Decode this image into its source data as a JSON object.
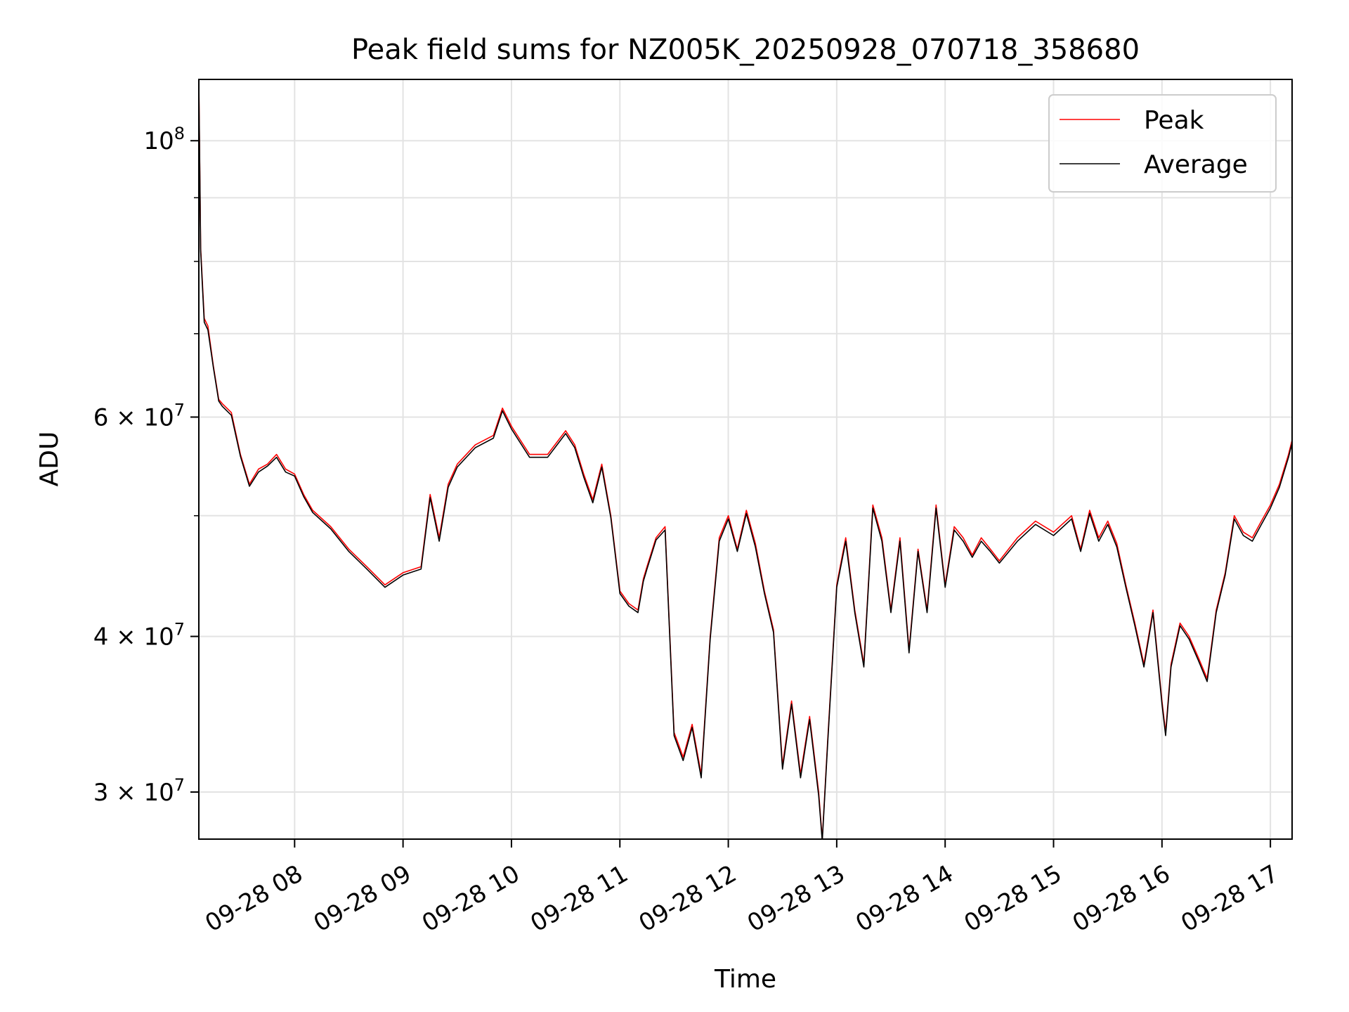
{
  "chart_data": {
    "type": "line",
    "title": "Peak field sums for NZ005K_20250928_070718_358680",
    "xlabel": "Time",
    "ylabel": "ADU",
    "yscale": "log",
    "ylim": [
      27500000,
      112000000
    ],
    "xlim": [
      "2025-09-28 07:07",
      "2025-09-28 17:12"
    ],
    "grid": true,
    "legend_position": "top-right",
    "x_ticks": [
      {
        "value": "2025-09-28 08:00",
        "label": "09-28 08"
      },
      {
        "value": "2025-09-28 09:00",
        "label": "09-28 09"
      },
      {
        "value": "2025-09-28 10:00",
        "label": "09-28 10"
      },
      {
        "value": "2025-09-28 11:00",
        "label": "09-28 11"
      },
      {
        "value": "2025-09-28 12:00",
        "label": "09-28 12"
      },
      {
        "value": "2025-09-28 13:00",
        "label": "09-28 13"
      },
      {
        "value": "2025-09-28 14:00",
        "label": "09-28 14"
      },
      {
        "value": "2025-09-28 15:00",
        "label": "09-28 15"
      },
      {
        "value": "2025-09-28 16:00",
        "label": "09-28 16"
      },
      {
        "value": "2025-09-28 17:00",
        "label": "09-28 17"
      }
    ],
    "y_major_ticks": [
      {
        "value": 100000000,
        "label": "10",
        "exp": "8",
        "mantissa": ""
      },
      {
        "value": 60000000,
        "label": "10",
        "exp": "7",
        "mantissa": "6 × "
      },
      {
        "value": 40000000,
        "label": "10",
        "exp": "7",
        "mantissa": "4 × "
      },
      {
        "value": 30000000,
        "label": "10",
        "exp": "7",
        "mantissa": "3 × "
      }
    ],
    "y_grid_values": [
      30000000,
      40000000,
      50000000,
      60000000,
      70000000,
      80000000,
      90000000,
      100000000
    ],
    "x": [
      "2025-09-28 07:07",
      "2025-09-28 07:08",
      "2025-09-28 07:10",
      "2025-09-28 07:12",
      "2025-09-28 07:15",
      "2025-09-28 07:18",
      "2025-09-28 07:20",
      "2025-09-28 07:25",
      "2025-09-28 07:30",
      "2025-09-28 07:35",
      "2025-09-28 07:40",
      "2025-09-28 07:45",
      "2025-09-28 07:50",
      "2025-09-28 07:55",
      "2025-09-28 08:00",
      "2025-09-28 08:05",
      "2025-09-28 08:10",
      "2025-09-28 08:20",
      "2025-09-28 08:30",
      "2025-09-28 08:40",
      "2025-09-28 08:50",
      "2025-09-28 09:00",
      "2025-09-28 09:10",
      "2025-09-28 09:15",
      "2025-09-28 09:20",
      "2025-09-28 09:25",
      "2025-09-28 09:30",
      "2025-09-28 09:40",
      "2025-09-28 09:50",
      "2025-09-28 09:55",
      "2025-09-28 10:00",
      "2025-09-28 10:10",
      "2025-09-28 10:20",
      "2025-09-28 10:30",
      "2025-09-28 10:35",
      "2025-09-28 10:40",
      "2025-09-28 10:45",
      "2025-09-28 10:50",
      "2025-09-28 10:55",
      "2025-09-28 11:00",
      "2025-09-28 11:05",
      "2025-09-28 11:10",
      "2025-09-28 11:13",
      "2025-09-28 11:15",
      "2025-09-28 11:20",
      "2025-09-28 11:25",
      "2025-09-28 11:30",
      "2025-09-28 11:35",
      "2025-09-28 11:40",
      "2025-09-28 11:45",
      "2025-09-28 11:50",
      "2025-09-28 11:55",
      "2025-09-28 12:00",
      "2025-09-28 12:05",
      "2025-09-28 12:10",
      "2025-09-28 12:15",
      "2025-09-28 12:20",
      "2025-09-28 12:25",
      "2025-09-28 12:30",
      "2025-09-28 12:35",
      "2025-09-28 12:40",
      "2025-09-28 12:45",
      "2025-09-28 12:50",
      "2025-09-28 12:52",
      "2025-09-28 12:55",
      "2025-09-28 13:00",
      "2025-09-28 13:05",
      "2025-09-28 13:10",
      "2025-09-28 13:15",
      "2025-09-28 13:20",
      "2025-09-28 13:25",
      "2025-09-28 13:30",
      "2025-09-28 13:35",
      "2025-09-28 13:40",
      "2025-09-28 13:45",
      "2025-09-28 13:50",
      "2025-09-28 13:55",
      "2025-09-28 14:00",
      "2025-09-28 14:05",
      "2025-09-28 14:10",
      "2025-09-28 14:15",
      "2025-09-28 14:20",
      "2025-09-28 14:25",
      "2025-09-28 14:30",
      "2025-09-28 14:40",
      "2025-09-28 14:50",
      "2025-09-28 15:00",
      "2025-09-28 15:10",
      "2025-09-28 15:15",
      "2025-09-28 15:20",
      "2025-09-28 15:25",
      "2025-09-28 15:30",
      "2025-09-28 15:35",
      "2025-09-28 15:40",
      "2025-09-28 15:45",
      "2025-09-28 15:50",
      "2025-09-28 15:55",
      "2025-09-28 16:00",
      "2025-09-28 16:02",
      "2025-09-28 16:05",
      "2025-09-28 16:10",
      "2025-09-28 16:15",
      "2025-09-28 16:20",
      "2025-09-28 16:25",
      "2025-09-28 16:30",
      "2025-09-28 16:35",
      "2025-09-28 16:40",
      "2025-09-28 16:45",
      "2025-09-28 16:50",
      "2025-09-28 16:55",
      "2025-09-28 17:00",
      "2025-09-28 17:05",
      "2025-09-28 17:10",
      "2025-09-28 17:12"
    ],
    "series": [
      {
        "name": "Peak",
        "color": "#ff0000",
        "values": [
          112000000,
          82000000,
          72000000,
          71000000,
          66000000,
          62000000,
          61500000,
          60500000,
          56000000,
          53000000,
          54500000,
          55000000,
          56000000,
          54500000,
          54000000,
          52000000,
          50500000,
          49000000,
          47000000,
          45500000,
          44000000,
          45000000,
          45500000,
          52000000,
          48000000,
          53000000,
          55000000,
          57000000,
          58000000,
          61000000,
          59000000,
          56000000,
          56000000,
          58500000,
          57000000,
          54000000,
          51500000,
          55000000,
          50000000,
          43500000,
          42500000,
          42000000,
          44500000,
          45500000,
          48000000,
          49000000,
          33500000,
          32000000,
          34000000,
          31000000,
          40000000,
          48000000,
          50000000,
          47000000,
          50500000,
          47500000,
          43500000,
          40500000,
          31500000,
          35500000,
          31000000,
          34500000,
          30000000,
          27500000,
          33000000,
          44000000,
          48000000,
          42000000,
          38000000,
          51000000,
          48000000,
          42000000,
          48000000,
          39000000,
          47000000,
          42000000,
          51000000,
          44000000,
          49000000,
          48000000,
          46500000,
          48000000,
          47000000,
          46000000,
          48000000,
          49500000,
          48500000,
          50000000,
          47000000,
          50500000,
          48000000,
          49500000,
          47500000,
          44000000,
          41000000,
          38000000,
          42000000,
          35500000,
          33500000,
          38000000,
          41000000,
          40000000,
          38500000,
          37000000,
          42000000,
          45000000,
          50000000,
          48500000,
          48000000,
          49500000,
          51000000,
          53000000,
          56000000,
          57500000
        ]
      },
      {
        "name": "Average",
        "color": "#000000",
        "values": [
          111000000,
          81500000,
          71500000,
          70500000,
          65800000,
          61800000,
          61200000,
          60200000,
          55800000,
          52800000,
          54200000,
          54800000,
          55700000,
          54200000,
          53800000,
          51800000,
          50300000,
          48800000,
          46800000,
          45300000,
          43800000,
          44800000,
          45300000,
          51700000,
          47700000,
          52700000,
          54700000,
          56700000,
          57700000,
          60700000,
          58700000,
          55700000,
          55700000,
          58200000,
          56700000,
          53700000,
          51200000,
          54700000,
          49800000,
          43300000,
          42300000,
          41800000,
          44300000,
          45300000,
          47800000,
          48700000,
          33300000,
          31800000,
          33800000,
          30800000,
          39800000,
          47700000,
          49700000,
          46800000,
          50200000,
          47200000,
          43300000,
          40300000,
          31300000,
          35300000,
          30800000,
          34300000,
          29800000,
          27400000,
          32800000,
          43800000,
          47700000,
          41800000,
          37800000,
          50700000,
          47700000,
          41800000,
          47700000,
          38800000,
          46800000,
          41800000,
          50700000,
          43800000,
          48700000,
          47700000,
          46300000,
          47700000,
          46800000,
          45800000,
          47700000,
          49200000,
          48200000,
          49700000,
          46800000,
          50200000,
          47700000,
          49200000,
          47200000,
          43800000,
          40800000,
          37800000,
          41800000,
          35300000,
          33300000,
          37800000,
          40800000,
          39800000,
          38300000,
          36800000,
          41800000,
          44800000,
          49700000,
          48200000,
          47700000,
          49200000,
          50700000,
          52700000,
          55700000,
          57200000
        ]
      }
    ]
  }
}
